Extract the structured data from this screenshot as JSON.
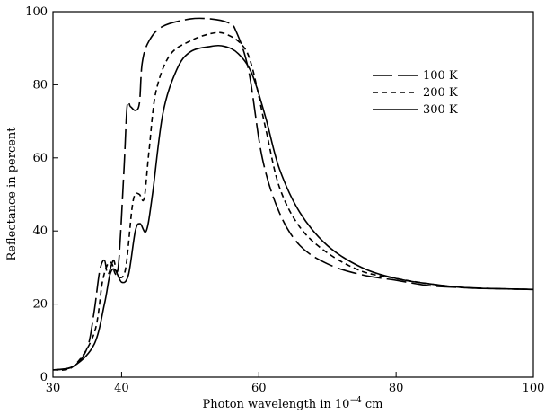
{
  "chart_data": {
    "type": "line",
    "title": "",
    "xlabel": {
      "prefix": "Photon wavelength in 10",
      "exponent": "−4",
      "suffix": " cm"
    },
    "ylabel": "Reflectance in percent",
    "xlim": [
      30,
      100
    ],
    "ylim": [
      0,
      100
    ],
    "x_ticks": [
      30,
      40,
      60,
      80,
      100
    ],
    "x_tick_labels": [
      "30",
      "40",
      "60",
      "80",
      "100"
    ],
    "y_ticks": [
      0,
      20,
      40,
      60,
      80,
      100
    ],
    "y_tick_labels": [
      "0",
      "20",
      "40",
      "60",
      "80",
      "100"
    ],
    "grid": false,
    "legend_position": "upper-right",
    "series": [
      {
        "name": "100 K",
        "style": "long-dash",
        "x": [
          30,
          33,
          35,
          36,
          36.8,
          37.5,
          38,
          38.8,
          39.5,
          40.3,
          40.8,
          41.3,
          42,
          42.6,
          43,
          44,
          46,
          50,
          53,
          55.5,
          56.6,
          58.5,
          60.5,
          63,
          66,
          70,
          75,
          80,
          85,
          90,
          95,
          100
        ],
        "y": [
          2,
          3,
          8,
          18,
          29,
          32,
          28,
          32,
          30,
          55,
          74,
          74,
          73,
          75,
          86,
          92,
          96,
          98,
          98,
          97,
          95,
          84,
          60,
          45,
          36,
          31,
          28,
          26.5,
          25,
          24.5,
          24.2,
          24
        ]
      },
      {
        "name": "200 K",
        "style": "short-dash",
        "x": [
          30,
          33,
          36,
          37.2,
          38,
          38.6,
          39.2,
          40.5,
          41.5,
          42,
          42.6,
          43.3,
          44,
          45,
          47,
          50,
          53,
          55,
          57.5,
          59,
          61,
          63,
          66,
          70,
          75,
          80,
          85,
          90,
          95,
          100
        ],
        "y": [
          2,
          3,
          12,
          26,
          31,
          31,
          28,
          29,
          46,
          50,
          50,
          49,
          62,
          78,
          88,
          92,
          94,
          94,
          91,
          85,
          68,
          52,
          41,
          34,
          29,
          27,
          25.5,
          24.5,
          24.2,
          24
        ]
      },
      {
        "name": "300 K",
        "style": "solid",
        "x": [
          30,
          33,
          36,
          37.5,
          38.3,
          39,
          40,
          41,
          42,
          42.7,
          43.6,
          44.5,
          46,
          48,
          50,
          53,
          55,
          57,
          59,
          61,
          63,
          66,
          70,
          75,
          80,
          85,
          90,
          95,
          100
        ],
        "y": [
          2,
          3,
          9,
          20,
          28,
          29.5,
          26,
          28,
          40,
          42,
          40,
          50,
          72,
          84,
          89,
          90.5,
          90.5,
          88.5,
          83,
          71,
          57,
          45,
          36,
          30,
          27,
          25.5,
          24.5,
          24.2,
          24
        ]
      }
    ]
  }
}
